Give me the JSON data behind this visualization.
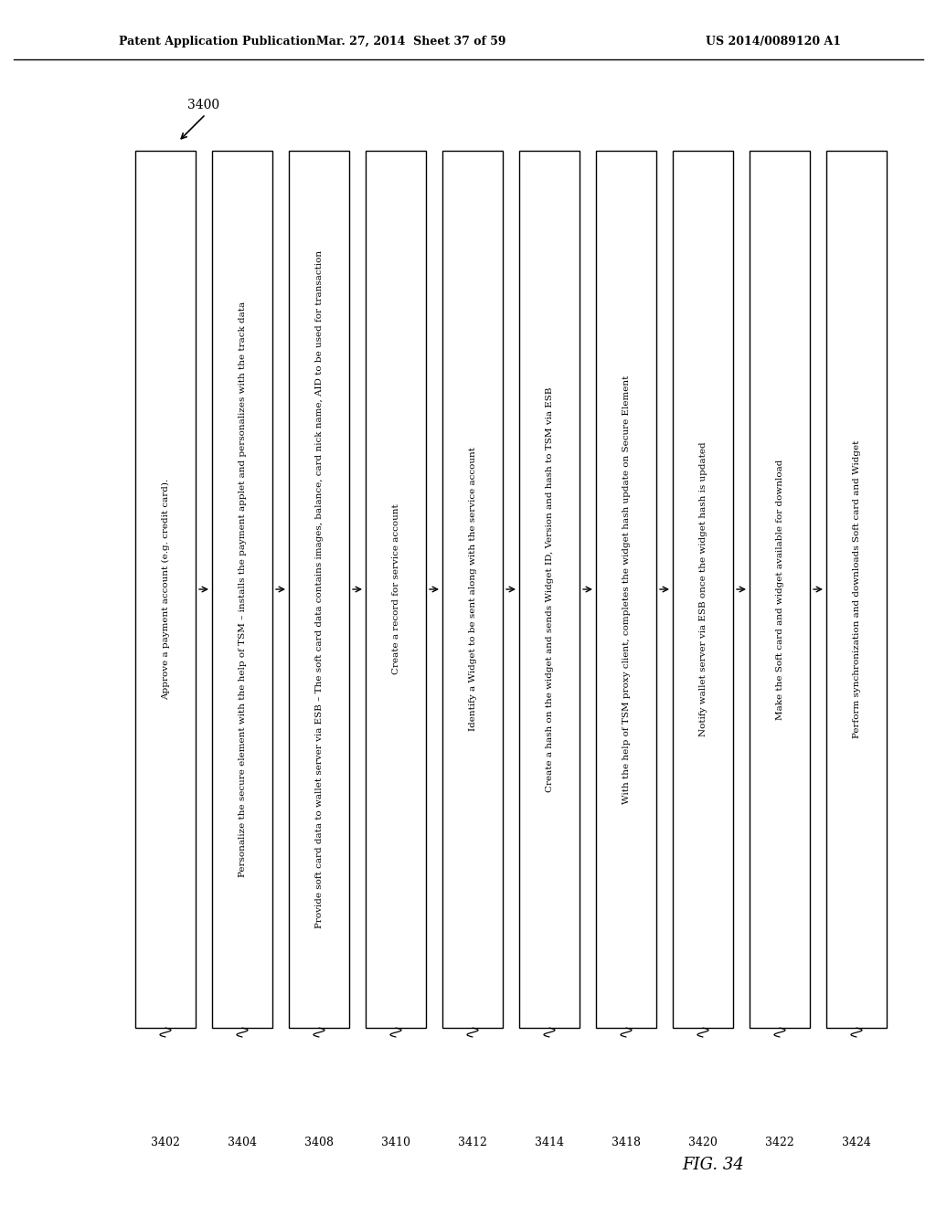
{
  "header_left": "Patent Application Publication",
  "header_mid": "Mar. 27, 2014  Sheet 37 of 59",
  "header_right": "US 2014/0089120 A1",
  "figure_label": "FIG. 34",
  "diagram_label": "3400",
  "background_color": "#ffffff",
  "steps": [
    {
      "id": "3402",
      "text": "Approve a payment account (e.g. credit card)."
    },
    {
      "id": "3404",
      "text": "Personalize the secure element with the help of TSM – installs the payment applet and personalizes with the track data"
    },
    {
      "id": "3408",
      "text": "Provide soft card data to wallet server via ESB – The soft card data contains images, balance, card nick name, AID to be used for transaction"
    },
    {
      "id": "3410",
      "text": "Create a record for service account"
    },
    {
      "id": "3412",
      "text": "Identify a Widget to be sent along with the service account"
    },
    {
      "id": "3414",
      "text": "Create a hash on the widget and sends Widget ID, Version and hash to TSM via ESB"
    },
    {
      "id": "3418",
      "text": "With the help of TSM proxy client, completes the widget hash update on Secure Element"
    },
    {
      "id": "3420",
      "text": "Notify wallet server via ESB once the widget hash is updated"
    },
    {
      "id": "3422",
      "text": "Make the Soft card and widget available for download"
    },
    {
      "id": "3424",
      "text": "Perform synchronization and downloads Soft card and Widget"
    }
  ]
}
